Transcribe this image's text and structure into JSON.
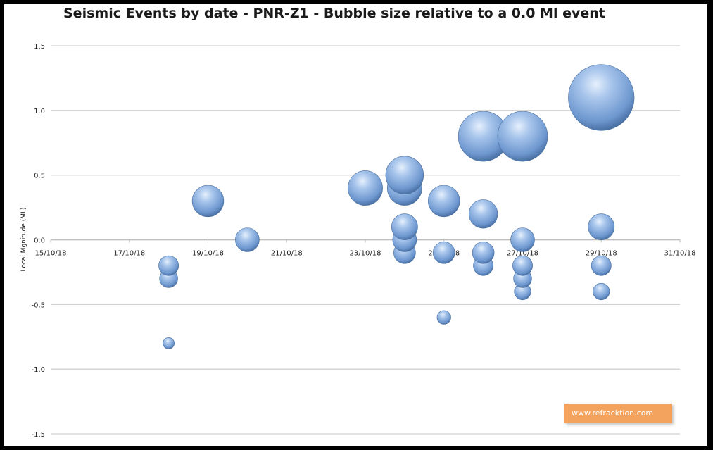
{
  "chart_data": {
    "type": "scatter",
    "title": "Seismic Events by date - PNR-Z1 - Bubble size relative to a 0.0 Ml event",
    "xlabel": "",
    "ylabel": "Local Mgnitude (ML)",
    "xlim": [
      "2018-10-15",
      "2018-10-31"
    ],
    "ylim": [
      -1.5,
      1.5
    ],
    "x_ticks": [
      "15/10/18",
      "17/10/18",
      "19/10/18",
      "21/10/18",
      "23/10/18",
      "25/10/18",
      "27/10/18",
      "29/10/18",
      "31/10/18"
    ],
    "y_ticks": [
      "1.5",
      "1.0",
      "0.5",
      "0.0",
      "-0.5",
      "-1.0",
      "-1.5"
    ],
    "grid": true,
    "legend": "none",
    "bubble_color": "#7ba4da",
    "series": [
      {
        "points": [
          {
            "date": "2018-10-18",
            "ml": -0.2
          },
          {
            "date": "2018-10-18",
            "ml": -0.3
          },
          {
            "date": "2018-10-18",
            "ml": -0.8
          },
          {
            "date": "2018-10-19",
            "ml": 0.3
          },
          {
            "date": "2018-10-20",
            "ml": 0.0
          },
          {
            "date": "2018-10-23",
            "ml": 0.4
          },
          {
            "date": "2018-10-24",
            "ml": 0.4
          },
          {
            "date": "2018-10-24",
            "ml": 0.5
          },
          {
            "date": "2018-10-24",
            "ml": 0.1
          },
          {
            "date": "2018-10-24",
            "ml": 0.0
          },
          {
            "date": "2018-10-24",
            "ml": -0.1
          },
          {
            "date": "2018-10-25",
            "ml": 0.3
          },
          {
            "date": "2018-10-25",
            "ml": -0.1
          },
          {
            "date": "2018-10-25",
            "ml": -0.6
          },
          {
            "date": "2018-10-26",
            "ml": 0.8
          },
          {
            "date": "2018-10-26",
            "ml": 0.2
          },
          {
            "date": "2018-10-26",
            "ml": -0.1
          },
          {
            "date": "2018-10-26",
            "ml": -0.2
          },
          {
            "date": "2018-10-27",
            "ml": 0.8
          },
          {
            "date": "2018-10-27",
            "ml": 0.0
          },
          {
            "date": "2018-10-27",
            "ml": -0.2
          },
          {
            "date": "2018-10-27",
            "ml": -0.3
          },
          {
            "date": "2018-10-27",
            "ml": -0.4
          },
          {
            "date": "2018-10-29",
            "ml": 1.1
          },
          {
            "date": "2018-10-29",
            "ml": 0.1
          },
          {
            "date": "2018-10-29",
            "ml": -0.2
          },
          {
            "date": "2018-10-29",
            "ml": -0.4
          }
        ]
      }
    ]
  },
  "watermark": "www.refracktion.com"
}
